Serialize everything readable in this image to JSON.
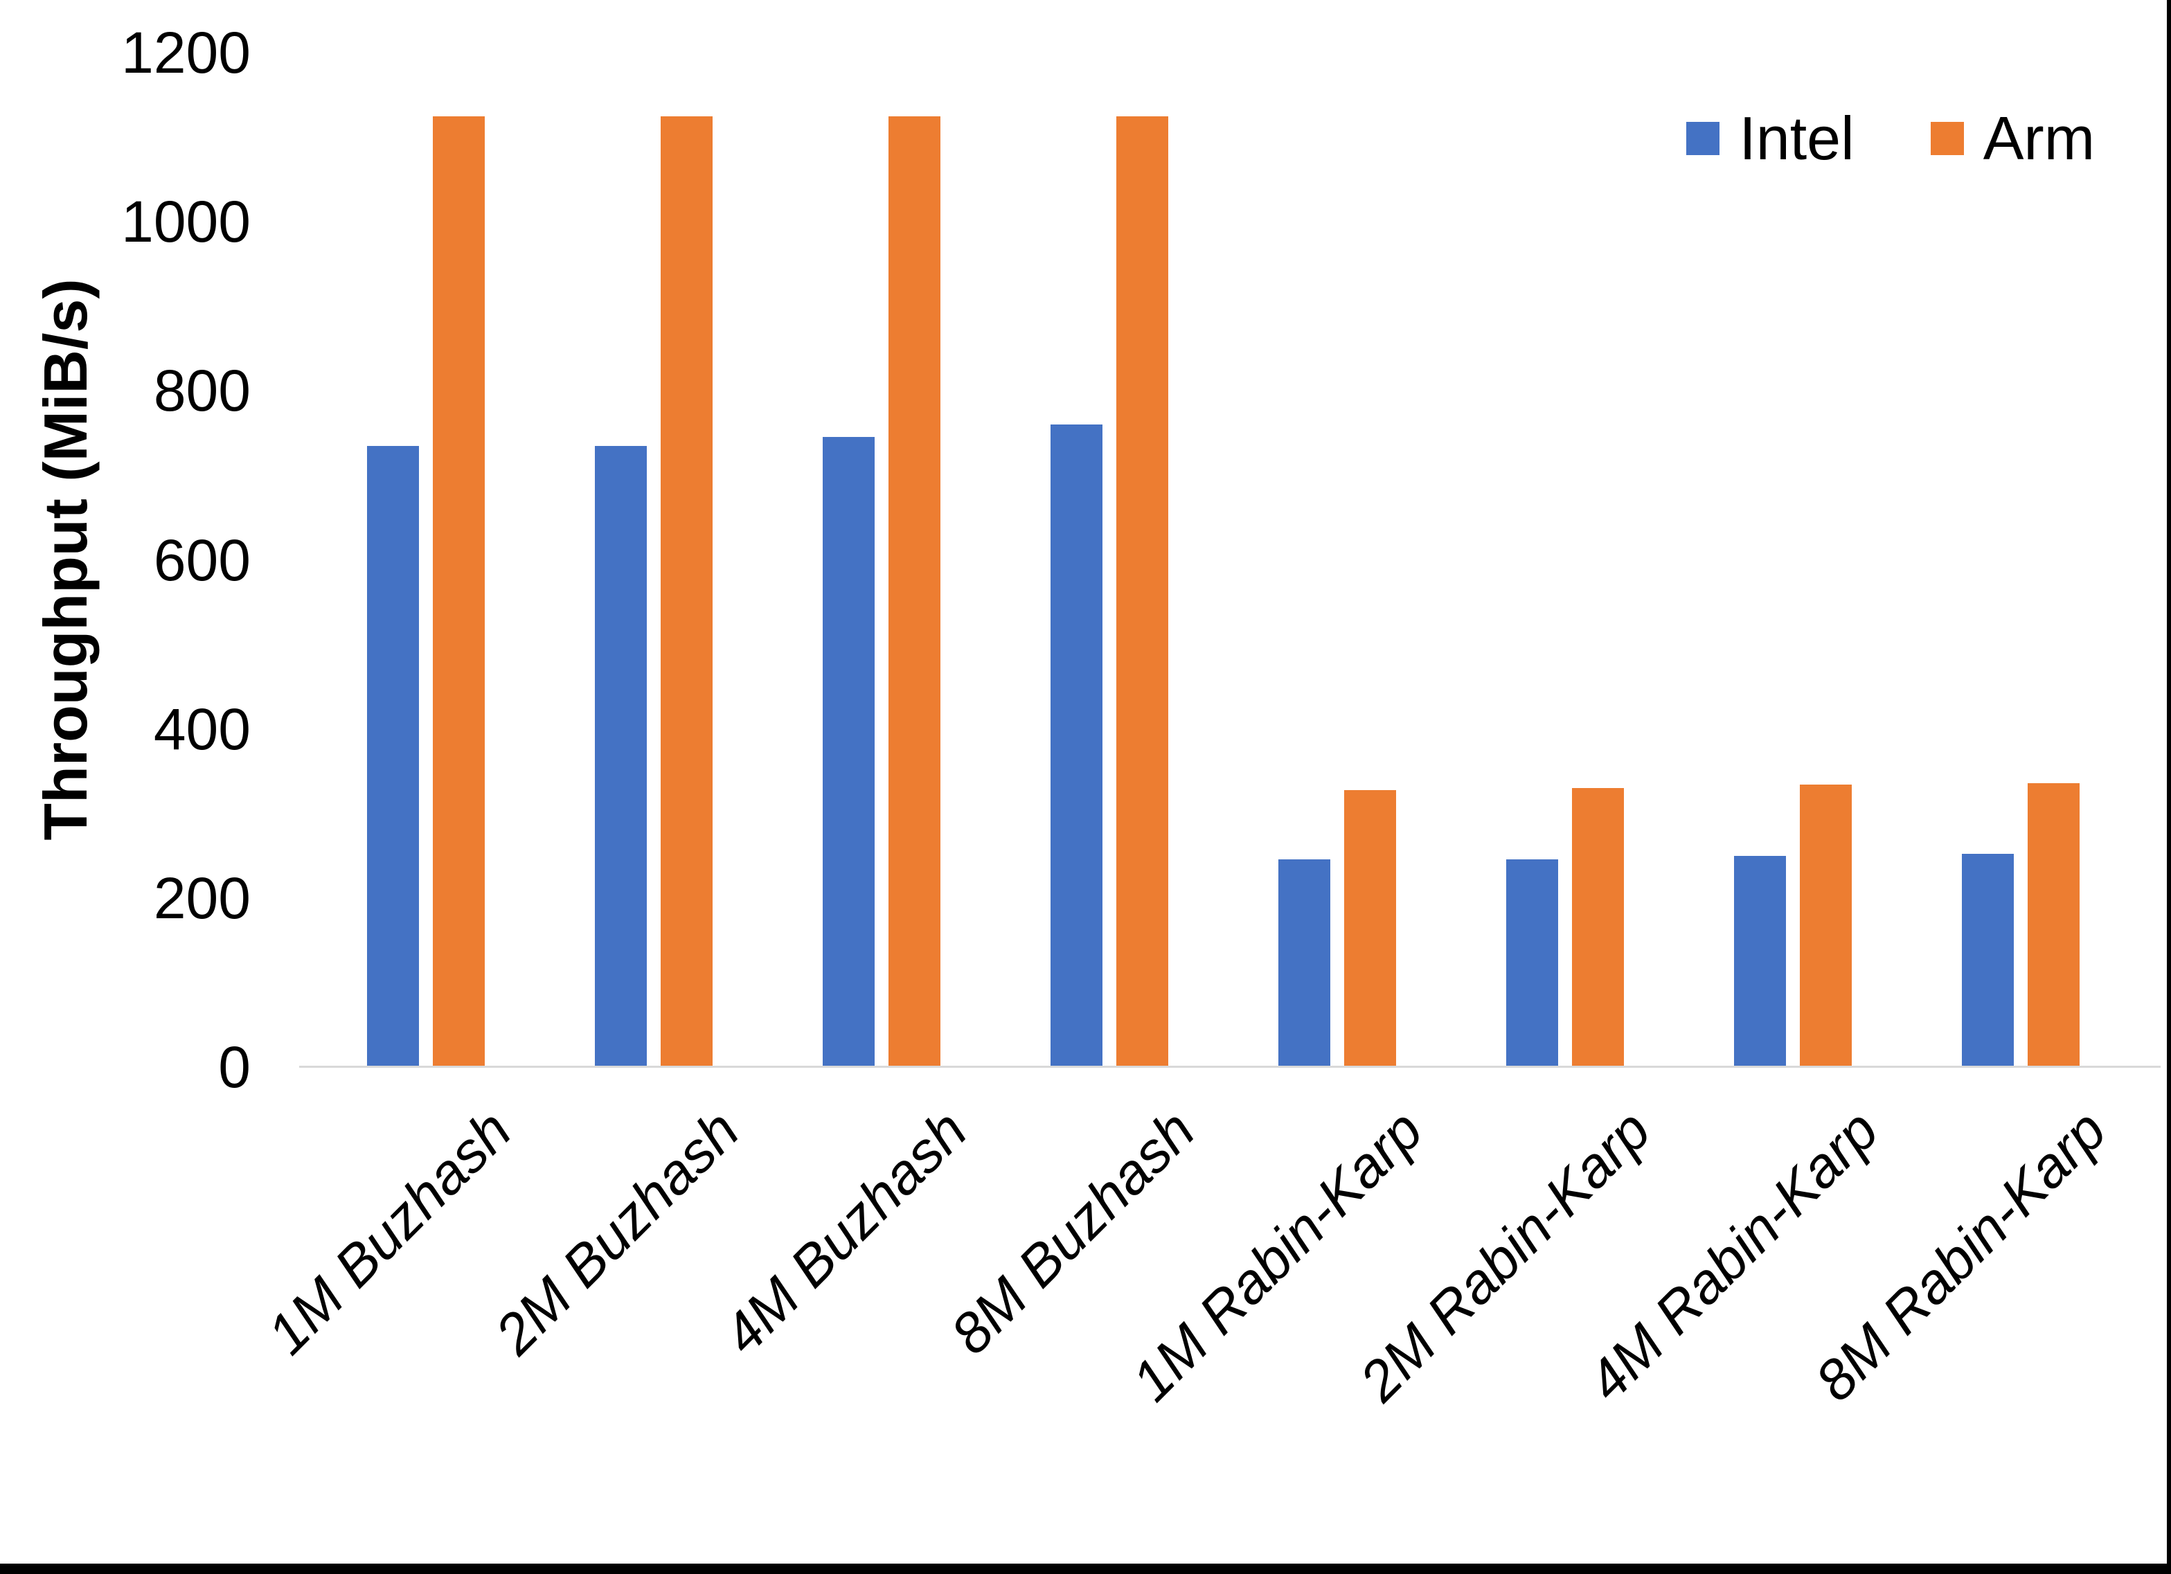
{
  "chart_data": {
    "type": "bar",
    "title": "",
    "categories": [
      "1M Buzhash",
      "2M Buzhash",
      "4M Buzhash",
      "8M Buzhash",
      "1M Rabin-Karp",
      "2M Rabin-Karp",
      "4M Rabin-Karp",
      "8M Rabin-Karp"
    ],
    "series": [
      {
        "name": "Intel",
        "color": "#4472C4",
        "values": [
          735,
          735,
          745,
          760,
          246,
          246,
          250,
          252
        ]
      },
      {
        "name": "Arm",
        "color": "#ED7D31",
        "values": [
          1125,
          1125,
          1125,
          1125,
          328,
          330,
          334,
          336
        ]
      }
    ],
    "xlabel": "",
    "ylabel": "Throughput (MiB/s)",
    "ylim": [
      0,
      1200
    ],
    "yticks": [
      0,
      200,
      400,
      600,
      800,
      1000,
      1200
    ],
    "grid": false,
    "legend_position": "top-right",
    "axis_line_color": "#D9D9D9"
  }
}
